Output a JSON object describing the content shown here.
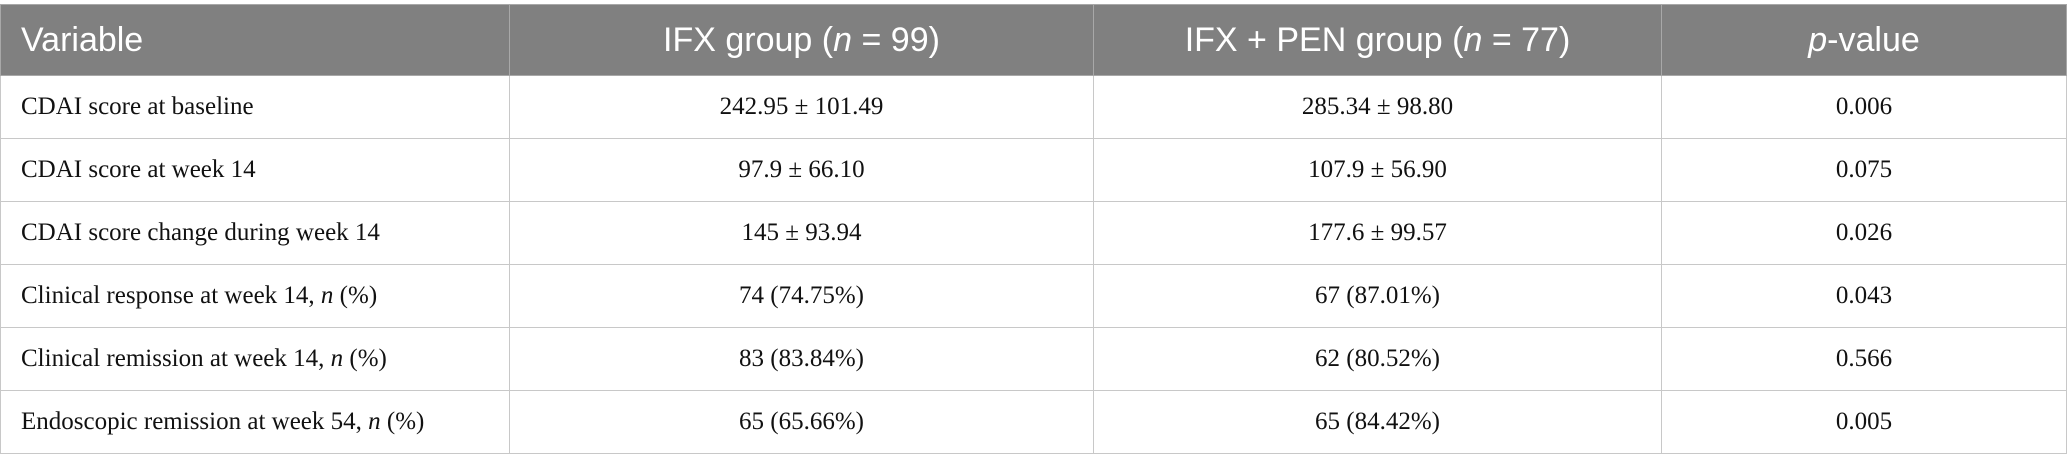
{
  "table": {
    "header": [
      [
        "Variable"
      ],
      [
        "IFX group (",
        "n",
        " = 99)"
      ],
      [
        "IFX + PEN group (",
        "n",
        " = 77)"
      ],
      [
        "p",
        "-value"
      ]
    ],
    "rows": [
      [
        [
          "CDAI score at baseline"
        ],
        "242.95 ± 101.49",
        "285.34 ± 98.80",
        "0.006"
      ],
      [
        [
          "CDAI score at week 14"
        ],
        "97.9 ± 66.10",
        "107.9 ± 56.90",
        "0.075"
      ],
      [
        [
          "CDAI score change during week 14"
        ],
        "145 ± 93.94",
        "177.6 ± 99.57",
        "0.026"
      ],
      [
        [
          "Clinical response at week 14, ",
          "n",
          " (%)"
        ],
        "74 (74.75%)",
        "67 (87.01%)",
        "0.043"
      ],
      [
        [
          "Clinical remission at week 14, ",
          "n",
          " (%)"
        ],
        "83 (83.84%)",
        "62 (80.52%)",
        "0.566"
      ],
      [
        [
          "Endoscopic remission at week 54, ",
          "n",
          " (%)"
        ],
        "65 (65.66%)",
        "65 (84.42%)",
        "0.005"
      ]
    ]
  }
}
